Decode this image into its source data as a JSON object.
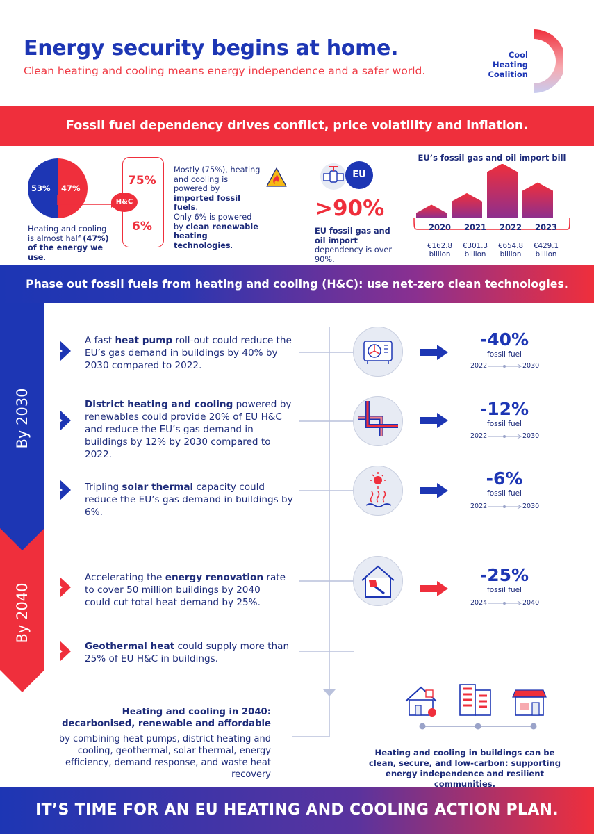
{
  "header": {
    "title": "Energy security begins at home.",
    "subtitle": "Clean heating and cooling means energy independence and a safer world.",
    "logo_lines": [
      "Cool",
      "Heating",
      "Coalition"
    ]
  },
  "banner1": "Fossil fuel dependency drives conflict, price volatility and inflation.",
  "section1": {
    "pie": {
      "left_pct": "53%",
      "right_pct": "47%",
      "values": [
        53,
        47
      ],
      "colors": [
        "#1d36b4",
        "#ef2f3c"
      ]
    },
    "pie_caption": {
      "pre": "Heating and cooling is almost half ",
      "bold1": "(47%)",
      "bold2": "of the energy we use",
      "post": "."
    },
    "hc_label": "H&C",
    "bracket_top": "75%",
    "bracket_bottom": "6%",
    "text_top": {
      "pre": "Mostly (75%), heating and cooling is powered by ",
      "bold": "imported fossil fuels",
      "post": "."
    },
    "text_bottom": {
      "pre": "Only 6% is powered by ",
      "bold": "clean renewable heating technologies",
      "post": "."
    },
    "eu_badge": "EU",
    "dependency_value": ">90%",
    "dependency_text": {
      "bold": "EU fossil gas and oil import",
      "post": " dependency is over 90%."
    },
    "import_bill": {
      "title": "EU’s fossil gas and oil import bill",
      "bars": [
        {
          "year": "2020",
          "amount": "€162.8",
          "unit": "billion",
          "value": 162.8
        },
        {
          "year": "2021",
          "amount": "€301.3",
          "unit": "billion",
          "value": 301.3
        },
        {
          "year": "2022",
          "amount": "€654.8",
          "unit": "billion",
          "value": 654.8
        },
        {
          "year": "2023",
          "amount": "€429.1",
          "unit": "billion",
          "value": 429.1
        }
      ]
    }
  },
  "banner2": "Phase out fossil fuels from heating and cooling (H&C): use net-zero clean technologies.",
  "timeline": {
    "by2030": "By 2030",
    "by2040": "By 2040",
    "items": [
      {
        "pre": "A fast ",
        "bold": "heat pump",
        "post": " roll-out could reduce the EU’s gas demand in buildings by 40% by 2030 compared to 2022.",
        "icon": "heat-pump-icon",
        "value": "-40%",
        "label": "fossil fuel",
        "from": "2022",
        "to": "2030"
      },
      {
        "pre": "",
        "bold": "District heating and cooling",
        "post": " powered by renewables could provide 20% of EU H&C and reduce the EU’s gas demand in buildings by 12% by 2030 compared to 2022.",
        "icon": "district-heating-pipes-icon",
        "value": "-12%",
        "label": "fossil fuel",
        "from": "2022",
        "to": "2030"
      },
      {
        "pre": "Tripling ",
        "bold": "solar thermal",
        "post": " capacity could reduce the EU’s gas demand in buildings by 6%.",
        "icon": "solar-thermal-icon",
        "value": "-6%",
        "label": "fossil fuel",
        "from": "2022",
        "to": "2030"
      },
      {
        "pre": "Accelerating the ",
        "bold": "energy renovation",
        "post": " rate to cover 50 million buildings by 2040 could cut total heat demand by 25%.",
        "icon": "house-renovation-icon",
        "value": "-25%",
        "label": "fossil fuel",
        "from": "2024",
        "to": "2040"
      },
      {
        "pre": "",
        "bold": "Geothermal heat",
        "post": " could supply more than 25% of EU H&C in buildings."
      }
    ]
  },
  "conclusion": {
    "heading_line1": "Heating and cooling in 2040:",
    "heading_line2": "decarbonised, renewable and affordable",
    "body": "by combining heat pumps, district heating and cooling, geothermal, solar thermal, energy efficiency, demand response, and waste heat recovery",
    "right": "Heating and cooling in buildings can be clean, secure, and low-carbon: supporting energy independence and resilient communities."
  },
  "footer": "IT’S TIME FOR AN EU HEATING AND COOLING ACTION PLAN.",
  "colors": {
    "blue": "#1d36b4",
    "red": "#ef2f3c",
    "navy": "#1d2b7a"
  }
}
